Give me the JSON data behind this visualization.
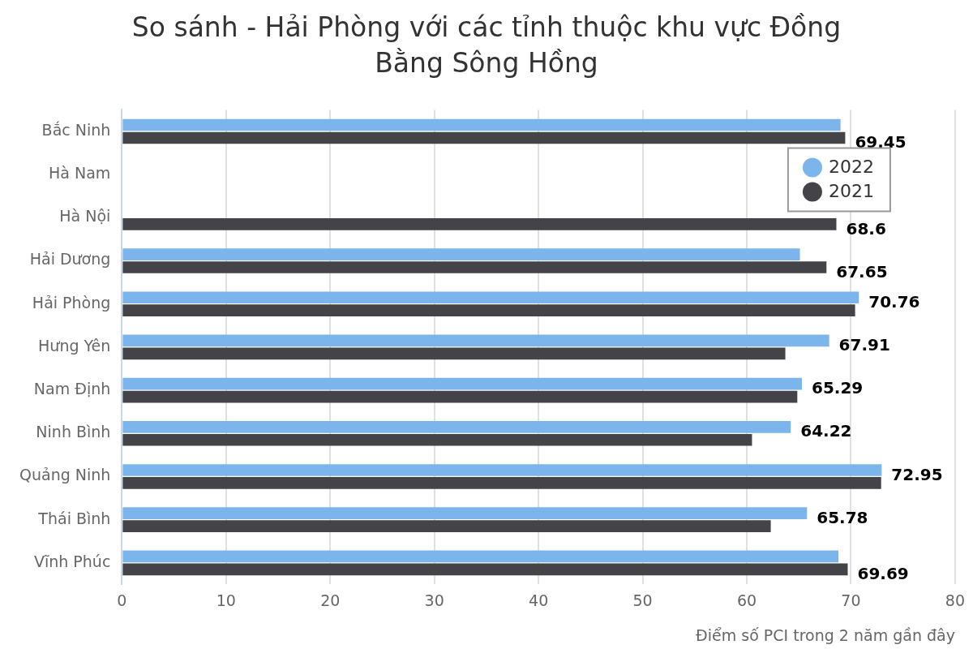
{
  "chart_data": {
    "type": "bar",
    "orientation": "horizontal",
    "title": "So sánh - Hải Phòng với các tỉnh thuộc khu vực Đồng Bằng Sông Hồng",
    "xlabel": "Điểm số PCI trong 2 năm gần đây",
    "categories": [
      "Bắc Ninh",
      "Hà Nam",
      "Hà Nội",
      "Hải Dương",
      "Hải Phòng",
      "Hưng Yên",
      "Nam Định",
      "Ninh Bình",
      "Quảng Ninh",
      "Thái Bình",
      "Vĩnh Phúc"
    ],
    "series": [
      {
        "name": "2022",
        "color": "#7cb5ec",
        "values": [
          69.0,
          null,
          null,
          65.1,
          70.76,
          67.91,
          65.29,
          64.22,
          72.95,
          65.78,
          68.8
        ],
        "value_labels": [
          null,
          null,
          null,
          null,
          "70.76",
          "67.91",
          "65.29",
          "64.22",
          "72.95",
          "65.78",
          null
        ]
      },
      {
        "name": "2021",
        "color": "#434348",
        "values": [
          69.45,
          null,
          68.6,
          67.65,
          70.4,
          63.7,
          64.85,
          60.5,
          72.9,
          62.3,
          69.69
        ],
        "value_labels": [
          "69.45",
          null,
          "68.6",
          "67.65",
          null,
          null,
          null,
          null,
          null,
          null,
          "69.69"
        ]
      }
    ],
    "xlim": [
      0,
      80
    ],
    "xticks": [
      0,
      10,
      20,
      30,
      40,
      50,
      60,
      70,
      80
    ],
    "grid": "x",
    "legend": "top right"
  }
}
